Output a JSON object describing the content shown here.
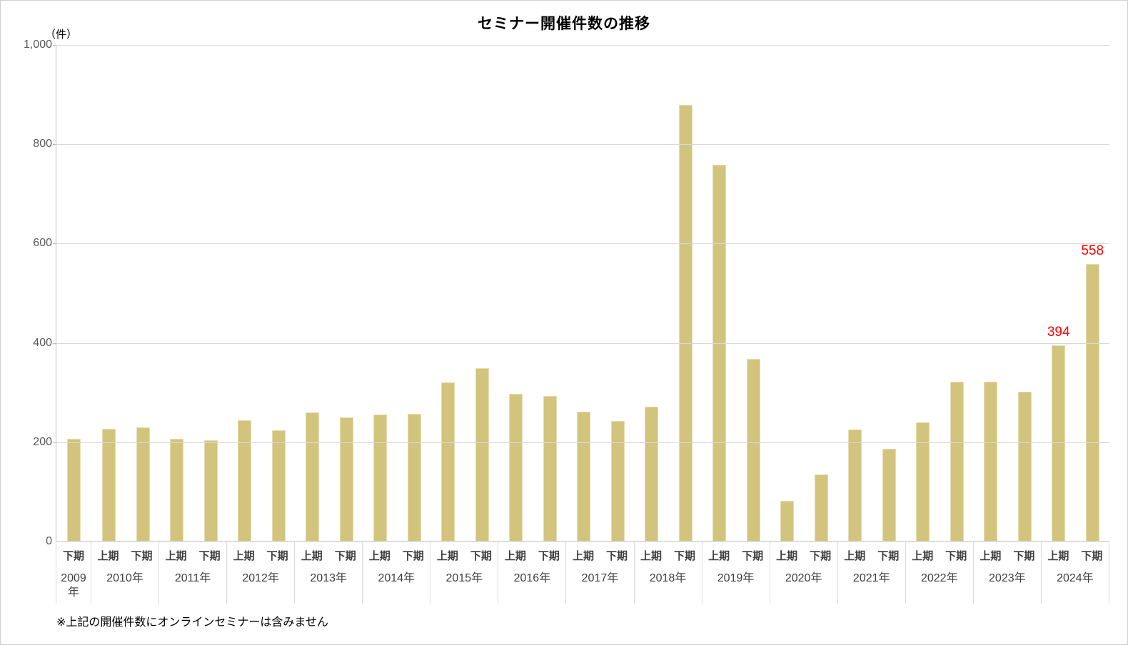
{
  "chart_data": {
    "type": "bar",
    "title": "セミナー開催件数の推移",
    "unit_label": "（件）",
    "xlabel": "",
    "ylabel": "件",
    "ylim": [
      0,
      1000
    ],
    "ytick_step": 200,
    "ytick_labels": [
      "1,000",
      "800",
      "600",
      "400",
      "200",
      "0"
    ],
    "grid": "horizontal",
    "legend": false,
    "note": "※上記の開催件数にオンラインセミナーは含みません",
    "bar_color": "#d2c47c",
    "data_label_color": "#ff0000",
    "groups": [
      {
        "year": "2009年",
        "bars": [
          {
            "period": "下期",
            "value": 206
          }
        ]
      },
      {
        "year": "2010年",
        "bars": [
          {
            "period": "上期",
            "value": 226
          },
          {
            "period": "下期",
            "value": 229
          }
        ]
      },
      {
        "year": "2011年",
        "bars": [
          {
            "period": "上期",
            "value": 206
          },
          {
            "period": "下期",
            "value": 202
          }
        ]
      },
      {
        "year": "2012年",
        "bars": [
          {
            "period": "上期",
            "value": 243
          },
          {
            "period": "下期",
            "value": 223
          }
        ]
      },
      {
        "year": "2013年",
        "bars": [
          {
            "period": "上期",
            "value": 258
          },
          {
            "period": "下期",
            "value": 249
          }
        ]
      },
      {
        "year": "2014年",
        "bars": [
          {
            "period": "上期",
            "value": 254
          },
          {
            "period": "下期",
            "value": 256
          }
        ]
      },
      {
        "year": "2015年",
        "bars": [
          {
            "period": "上期",
            "value": 319
          },
          {
            "period": "下期",
            "value": 348
          }
        ]
      },
      {
        "year": "2016年",
        "bars": [
          {
            "period": "上期",
            "value": 296
          },
          {
            "period": "下期",
            "value": 292
          }
        ]
      },
      {
        "year": "2017年",
        "bars": [
          {
            "period": "上期",
            "value": 260
          },
          {
            "period": "下期",
            "value": 242
          }
        ]
      },
      {
        "year": "2018年",
        "bars": [
          {
            "period": "上期",
            "value": 270
          },
          {
            "period": "下期",
            "value": 878
          }
        ]
      },
      {
        "year": "2019年",
        "bars": [
          {
            "period": "上期",
            "value": 757
          },
          {
            "period": "下期",
            "value": 366
          }
        ]
      },
      {
        "year": "2020年",
        "bars": [
          {
            "period": "上期",
            "value": 80
          },
          {
            "period": "下期",
            "value": 133
          }
        ]
      },
      {
        "year": "2021年",
        "bars": [
          {
            "period": "上期",
            "value": 224
          },
          {
            "period": "下期",
            "value": 186
          }
        ]
      },
      {
        "year": "2022年",
        "bars": [
          {
            "period": "上期",
            "value": 238
          },
          {
            "period": "下期",
            "value": 320
          }
        ]
      },
      {
        "year": "2023年",
        "bars": [
          {
            "period": "上期",
            "value": 320
          },
          {
            "period": "下期",
            "value": 301
          }
        ]
      },
      {
        "year": "2024年",
        "bars": [
          {
            "period": "上期",
            "value": 394,
            "data_label": "394"
          },
          {
            "period": "下期",
            "value": 558,
            "data_label": "558"
          }
        ]
      }
    ]
  }
}
